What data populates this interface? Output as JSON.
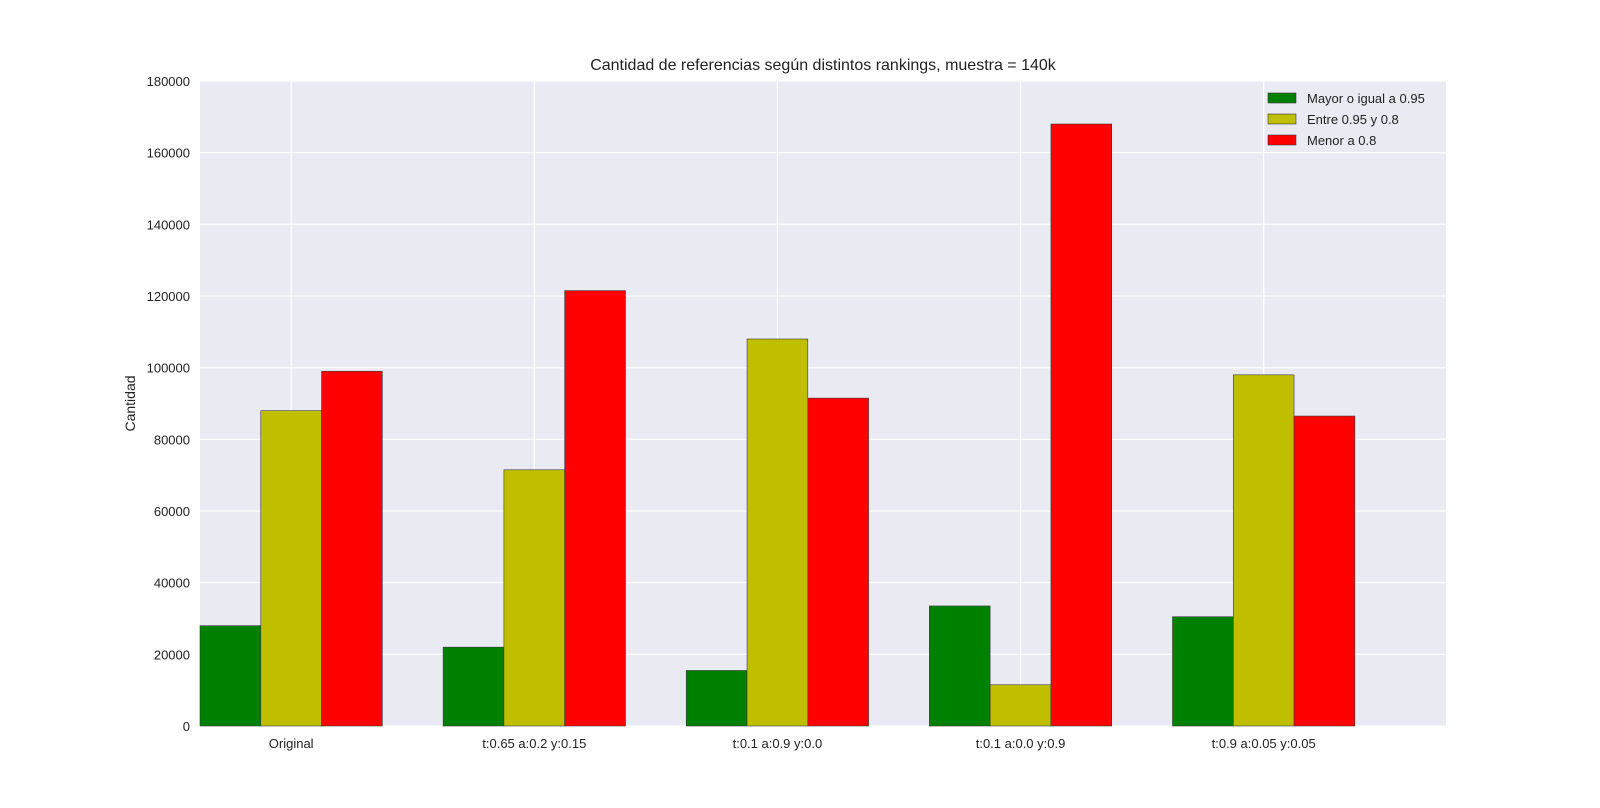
{
  "chart_data": {
    "type": "bar",
    "title": "Cantidad de referencias según distintos rankings, muestra = 140k",
    "xlabel": "",
    "ylabel": "Cantidad",
    "categories": [
      "Original",
      "t:0.65 a:0.2 y:0.15",
      "t:0.1 a:0.9 y:0.0",
      "t:0.1 a:0.0 y:0.9",
      "t:0.9 a:0.05 y:0.05"
    ],
    "series": [
      {
        "name": "Mayor o igual a 0.95",
        "color": "#008000",
        "values": [
          28000,
          22000,
          15500,
          33500,
          30500
        ]
      },
      {
        "name": "Entre 0.95 y 0.8",
        "color": "#bfbf00",
        "values": [
          88000,
          71500,
          108000,
          11500,
          98000
        ]
      },
      {
        "name": "Menor a 0.8",
        "color": "#ff0000",
        "values": [
          99000,
          121500,
          91500,
          168000,
          86500
        ]
      }
    ],
    "ylim": [
      0,
      180000
    ],
    "yticks": [
      "0",
      "20000",
      "40000",
      "60000",
      "80000",
      "100000",
      "120000",
      "140000",
      "160000",
      "180000"
    ],
    "grid": true,
    "legend_position": "top-right",
    "background": "#eaeaf2"
  }
}
